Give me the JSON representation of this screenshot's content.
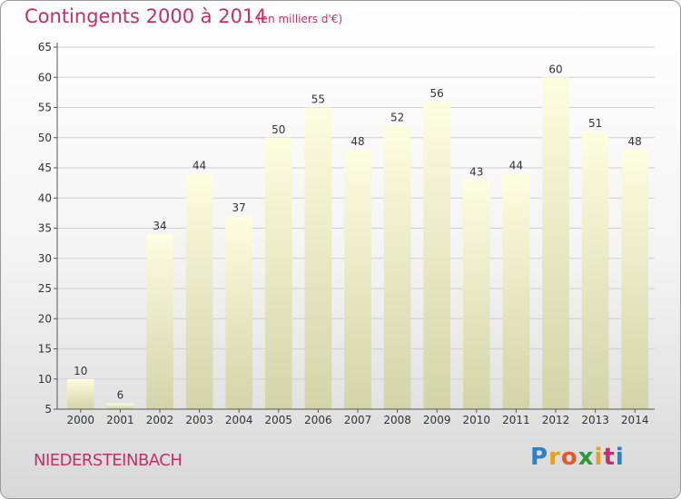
{
  "header": {
    "title": "Contingents 2000 à 2014",
    "subtitle": "(en milliers d'€)"
  },
  "footer": {
    "commune": "NIEDERSTEINBACH",
    "logo_letters": [
      "P",
      "r",
      "o",
      "x",
      "i",
      "t",
      "i"
    ],
    "logo_colors": [
      "#2f7fc1",
      "#e8a020",
      "#e05a2a",
      "#2a9a3a",
      "#e8a020",
      "#c0306a",
      "#2f7fc1"
    ]
  },
  "colors": {
    "accent": "#c0306a",
    "bar_top": "#fdfde0",
    "bar_bottom": "#d2d4a8",
    "grid": "#cfcfcf"
  },
  "chart_data": {
    "type": "bar",
    "title": "Contingents 2000 à 2014",
    "subtitle": "(en milliers d'€)",
    "categories": [
      "2000",
      "2001",
      "2002",
      "2003",
      "2004",
      "2005",
      "2006",
      "2007",
      "2008",
      "2009",
      "2010",
      "2011",
      "2012",
      "2013",
      "2014"
    ],
    "values": [
      10,
      6,
      34,
      44,
      37,
      50,
      55,
      48,
      52,
      56,
      43,
      44,
      60,
      51,
      48
    ],
    "ylim": [
      5,
      65
    ],
    "yticks": [
      5,
      10,
      15,
      20,
      25,
      30,
      35,
      40,
      45,
      50,
      55,
      60,
      65
    ],
    "grid": true,
    "data_labels": true
  }
}
